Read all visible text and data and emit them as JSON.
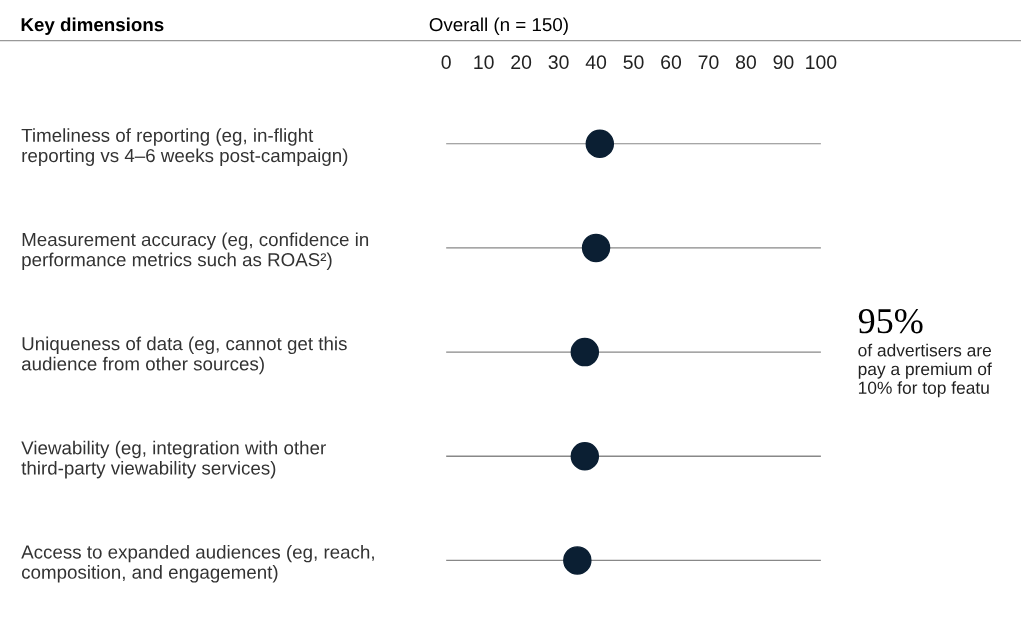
{
  "chart_data": {
    "type": "scatter",
    "title": "Overall (n = 150)",
    "ylabel": "Key dimensions",
    "categories": [
      "Timeliness of reporting (eg, in-flight reporting vs 4–6 weeks post-campaign)",
      "Measurement accuracy (eg, confidence in performance metrics such as ROAS²)",
      "Uniqueness of data (eg, cannot get this audience from other sources)",
      "Viewability (eg, integration with other third-party viewability services)",
      "Access to expanded audiences (eg, reach, composition, and engagement)"
    ],
    "series": [
      {
        "color": "#0b1f33",
        "values": [
          41,
          40,
          37,
          37,
          35
        ]
      }
    ],
    "xlim": [
      0,
      100
    ],
    "xticks": [
      0,
      10,
      20,
      30,
      40,
      50,
      60,
      70,
      80,
      90,
      100
    ],
    "orientation": "horizontal",
    "grid": "y",
    "marker": "circle",
    "annotations": [
      "95%",
      "of advertisers are pay a premium of 10% for top featu"
    ]
  }
}
